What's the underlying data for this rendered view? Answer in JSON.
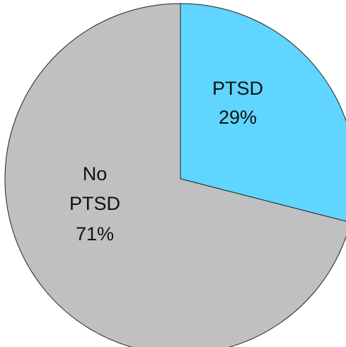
{
  "chart_data": {
    "type": "pie",
    "title": "",
    "slices": [
      {
        "label": "PTSD",
        "value": 29,
        "value_label": "29%",
        "color": "#5fd5ff"
      },
      {
        "label": "No PTSD",
        "value": 71,
        "value_label": "71%",
        "color": "#c0c0c0"
      }
    ],
    "start_angle": "12 o'clock",
    "direction": "clockwise",
    "legend": "none"
  }
}
